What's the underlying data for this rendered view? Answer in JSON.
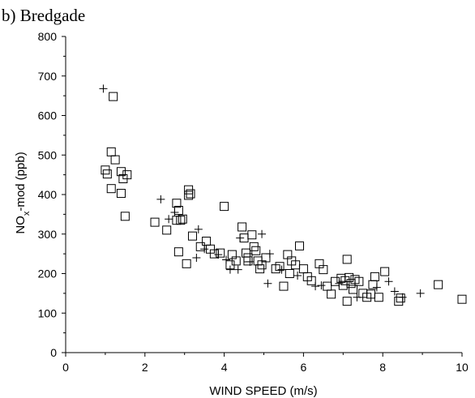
{
  "chart_data": {
    "type": "scatter",
    "title": "b) Bredgade",
    "xlabel": "WIND SPEED (m/s)",
    "ylabel": {
      "main": "NO",
      "sub": "x",
      "rest": "-mod (ppb)"
    },
    "xlim": [
      0,
      10
    ],
    "ylim": [
      0,
      800
    ],
    "x_ticks": [
      "0",
      "2",
      "4",
      "6",
      "8",
      "10"
    ],
    "y_ticks": [
      "0",
      "100",
      "200",
      "300",
      "400",
      "500",
      "600",
      "700",
      "800"
    ],
    "grid": false,
    "legend": "none",
    "series": [
      {
        "marker": "square",
        "points": [
          [
            1.2,
            648
          ],
          [
            1.15,
            508
          ],
          [
            1.0,
            462
          ],
          [
            1.05,
            452
          ],
          [
            1.25,
            488
          ],
          [
            1.4,
            458
          ],
          [
            1.55,
            450
          ],
          [
            1.45,
            440
          ],
          [
            1.15,
            415
          ],
          [
            1.4,
            403
          ],
          [
            1.5,
            345
          ],
          [
            2.25,
            330
          ],
          [
            2.55,
            310
          ],
          [
            2.8,
            378
          ],
          [
            2.85,
            360
          ],
          [
            2.8,
            335
          ],
          [
            2.9,
            335
          ],
          [
            2.95,
            338
          ],
          [
            3.1,
            412
          ],
          [
            3.1,
            398
          ],
          [
            3.15,
            402
          ],
          [
            3.2,
            295
          ],
          [
            2.85,
            255
          ],
          [
            3.05,
            225
          ],
          [
            3.4,
            268
          ],
          [
            3.55,
            282
          ],
          [
            3.65,
            262
          ],
          [
            3.75,
            250
          ],
          [
            3.9,
            252
          ],
          [
            4.0,
            370
          ],
          [
            4.15,
            222
          ],
          [
            4.2,
            248
          ],
          [
            4.3,
            232
          ],
          [
            4.45,
            318
          ],
          [
            4.5,
            290
          ],
          [
            4.55,
            252
          ],
          [
            4.6,
            240
          ],
          [
            4.6,
            232
          ],
          [
            4.7,
            298
          ],
          [
            4.75,
            268
          ],
          [
            4.8,
            258
          ],
          [
            4.85,
            232
          ],
          [
            4.9,
            212
          ],
          [
            4.95,
            222
          ],
          [
            5.05,
            240
          ],
          [
            5.3,
            212
          ],
          [
            5.4,
            218
          ],
          [
            5.5,
            168
          ],
          [
            5.6,
            248
          ],
          [
            5.65,
            200
          ],
          [
            5.7,
            232
          ],
          [
            5.8,
            222
          ],
          [
            5.9,
            270
          ],
          [
            6.0,
            212
          ],
          [
            6.1,
            192
          ],
          [
            6.2,
            182
          ],
          [
            6.4,
            225
          ],
          [
            6.5,
            210
          ],
          [
            6.6,
            168
          ],
          [
            6.7,
            148
          ],
          [
            6.8,
            180
          ],
          [
            7.0,
            170
          ],
          [
            7.05,
            182
          ],
          [
            7.1,
            236
          ],
          [
            7.15,
            190
          ],
          [
            7.2,
            175
          ],
          [
            7.25,
            160
          ],
          [
            7.3,
            185
          ],
          [
            7.4,
            180
          ],
          [
            7.5,
            150
          ],
          [
            7.6,
            140
          ],
          [
            7.7,
            148
          ],
          [
            7.75,
            172
          ],
          [
            7.8,
            192
          ],
          [
            7.9,
            140
          ],
          [
            8.05,
            205
          ],
          [
            8.4,
            130
          ],
          [
            8.45,
            138
          ],
          [
            9.4,
            172
          ],
          [
            10.0,
            135
          ],
          [
            7.1,
            130
          ],
          [
            6.95,
            188
          ]
        ]
      },
      {
        "marker": "plus",
        "points": [
          [
            0.95,
            668
          ],
          [
            2.4,
            388
          ],
          [
            2.6,
            338
          ],
          [
            2.75,
            355
          ],
          [
            3.3,
            240
          ],
          [
            3.35,
            312
          ],
          [
            3.5,
            262
          ],
          [
            3.85,
            248
          ],
          [
            4.05,
            235
          ],
          [
            4.15,
            210
          ],
          [
            4.35,
            210
          ],
          [
            4.4,
            290
          ],
          [
            4.65,
            230
          ],
          [
            4.95,
            300
          ],
          [
            5.1,
            175
          ],
          [
            5.15,
            250
          ],
          [
            5.45,
            210
          ],
          [
            5.85,
            195
          ],
          [
            6.3,
            168
          ],
          [
            6.45,
            170
          ],
          [
            6.9,
            175
          ],
          [
            7.35,
            140
          ],
          [
            8.15,
            180
          ],
          [
            8.3,
            155
          ],
          [
            8.95,
            150
          ],
          [
            8.5,
            140
          ],
          [
            7.85,
            165
          ]
        ]
      }
    ]
  }
}
